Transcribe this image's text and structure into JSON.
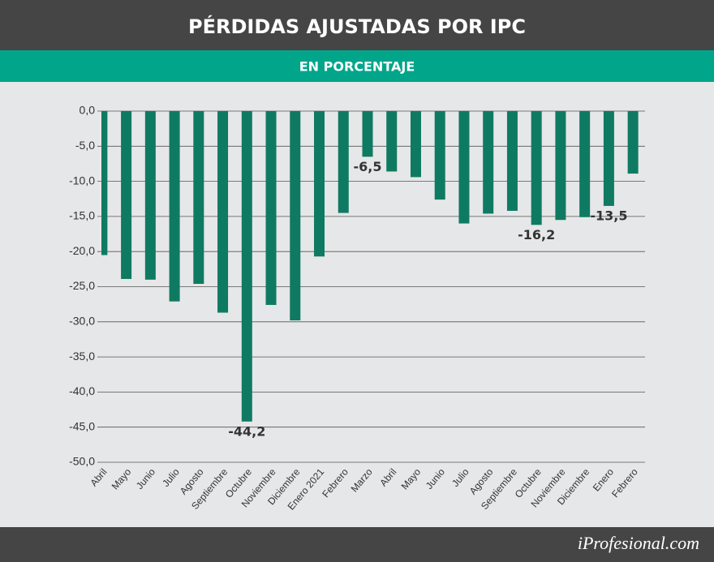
{
  "chart_data": {
    "type": "bar",
    "title": "PÉRDIDAS AJUSTADAS POR IPC",
    "subtitle": "EN PORCENTAJE",
    "categories": [
      "Abril",
      "Mayo",
      "Junio",
      "Julio",
      "Agosto",
      "Septiembre",
      "Octubre",
      "Noviembre",
      "Diciembre",
      "Enero 2021",
      "Febrero",
      "Marzo",
      "Abril",
      "Mayo",
      "Junio",
      "Julio",
      "Agosto",
      "Septiembre",
      "Octubre",
      "Noviembre",
      "Diciembre",
      "Enero",
      "Febrero"
    ],
    "values": [
      -20.5,
      -23.9,
      -24.0,
      -27.1,
      -24.6,
      -28.7,
      -44.2,
      -27.6,
      -29.8,
      -20.7,
      -14.5,
      -6.5,
      -8.6,
      -9.4,
      -12.6,
      -16.0,
      -14.6,
      -14.2,
      -16.2,
      -15.5,
      -15.1,
      -13.5,
      -8.9
    ],
    "value_labels": [
      null,
      null,
      null,
      null,
      null,
      null,
      "-44,2",
      null,
      null,
      null,
      null,
      "-6,5",
      null,
      null,
      null,
      null,
      null,
      null,
      "-16,2",
      null,
      null,
      "-13,5",
      null
    ],
    "color": "#0f7a62",
    "ylim": [
      0,
      -50
    ],
    "yticks": [
      {
        "value": 0,
        "label": "0,0"
      },
      {
        "value": -5,
        "label": "-5,0"
      },
      {
        "value": -10,
        "label": "-10,0"
      },
      {
        "value": -15,
        "label": "-15,0"
      },
      {
        "value": -20,
        "label": "-20,0"
      },
      {
        "value": -25,
        "label": "-25,0"
      },
      {
        "value": -30,
        "label": "-30,0"
      },
      {
        "value": -35,
        "label": "-35,0"
      },
      {
        "value": -40,
        "label": "-40,0"
      },
      {
        "value": -45,
        "label": "-45,0"
      },
      {
        "value": -50,
        "label": "-50,0"
      }
    ],
    "grid": true
  },
  "footer": {
    "logo": "iProfesional.com"
  }
}
